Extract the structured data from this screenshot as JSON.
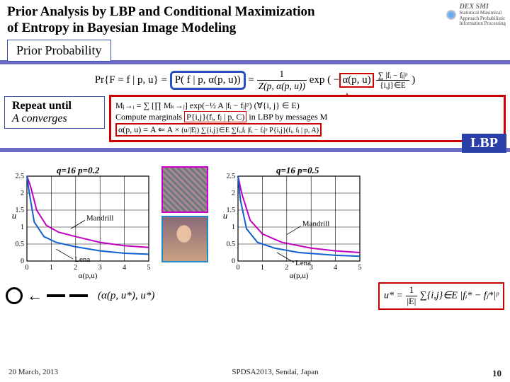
{
  "title": {
    "line1": "Prior Analysis by LBP and Conditional Maximization",
    "line2": "of Entropy in Bayesian Image Modeling"
  },
  "logo": {
    "short": "DEX SMI",
    "l1": "Statistical Maximizal",
    "l2": "Approach",
    "l3": "Probabilistic",
    "l4": "Information Processing"
  },
  "prior_box": "Prior Probability",
  "main_eq": {
    "lhs": "Pr{F = f | p, u} =",
    "blue": "P( f | p, α(p, u))",
    "mid": "=",
    "frac_n": "1",
    "frac_d": "Z(p, α(p, u))",
    "exp_pre": "exp",
    "alpha": "α(p, u)",
    "sum": "∑ |fᵢ − fⱼ|ᵖ",
    "sum_sub": "{i,j}∈E"
  },
  "repeat_box": {
    "l1": "Repeat until",
    "l2": "A converges"
  },
  "lbp_block": {
    "l1": "Mⱼ→ᵢ = ∑ [∏ Mₖ→ⱼ] exp(−½ A |fᵢ − fⱼ|ᵖ)  (∀{i, j} ∈ E)",
    "l2_pre": "Compute marginals ",
    "l2_box": "P{i,j}(fᵢ, fⱼ | p, C)",
    "l2_post": " in LBP by messages M",
    "l3_lhs": "α(p, u) = A ⇐ A ×",
    "l3_rhs": "(u/|E|) ∑{i,j}∈E ∑fᵢ,fⱼ |fᵢ − fⱼ|ᵖ P{i,j}(fᵢ, fⱼ | p, A)",
    "label": "LBP"
  },
  "chart_left": {
    "caption": "q=16  p=0.2",
    "ylabel": "u",
    "xlabel": "α(p,u)",
    "xlim": [
      0,
      5
    ],
    "ylim": [
      0,
      2.5
    ],
    "xticks": [
      0,
      1,
      2,
      3,
      4,
      5
    ],
    "yticks": [
      0,
      0.5,
      1,
      1.5,
      2,
      2.5
    ],
    "series": {
      "mandrill": {
        "color": "#c000c0",
        "points": [
          [
            0,
            2.5
          ],
          [
            0.15,
            2.2
          ],
          [
            0.4,
            1.5
          ],
          [
            0.8,
            1.05
          ],
          [
            1.3,
            0.85
          ],
          [
            2,
            0.72
          ],
          [
            3,
            0.55
          ],
          [
            4,
            0.45
          ],
          [
            5,
            0.4
          ]
        ]
      },
      "lena": {
        "color": "#1060d0",
        "points": [
          [
            0,
            2.5
          ],
          [
            0.1,
            2.0
          ],
          [
            0.3,
            1.15
          ],
          [
            0.7,
            0.72
          ],
          [
            1.2,
            0.55
          ],
          [
            2,
            0.42
          ],
          [
            3,
            0.3
          ],
          [
            4,
            0.23
          ],
          [
            5,
            0.2
          ]
        ]
      }
    },
    "labels": {
      "mandrill": "Mandrill",
      "lena": "Lena"
    },
    "mandrill_mark": [
      1.8,
      0.95
    ],
    "lena_mark": [
      1.2,
      0.35
    ],
    "grid_color": "#000",
    "gridw": 0.6,
    "bg": "#ffffff",
    "label_fontsize": 11,
    "tick_fontsize": 10
  },
  "chart_right": {
    "caption": "q=16  p=0.5",
    "ylabel": "u",
    "xlabel": "α(p,u)",
    "xlim": [
      0,
      5
    ],
    "ylim": [
      0,
      2.5
    ],
    "xticks": [
      0,
      1,
      2,
      3,
      4,
      5
    ],
    "yticks": [
      0,
      0.5,
      1,
      1.5,
      2,
      2.5
    ],
    "series": {
      "mandrill": {
        "color": "#c000c0",
        "points": [
          [
            0,
            2.5
          ],
          [
            0.15,
            2.0
          ],
          [
            0.5,
            1.2
          ],
          [
            1.0,
            0.8
          ],
          [
            1.8,
            0.55
          ],
          [
            3,
            0.38
          ],
          [
            4,
            0.3
          ],
          [
            5,
            0.25
          ]
        ]
      },
      "lena": {
        "color": "#1060d0",
        "points": [
          [
            0,
            2.5
          ],
          [
            0.1,
            1.8
          ],
          [
            0.35,
            0.95
          ],
          [
            0.8,
            0.55
          ],
          [
            1.5,
            0.38
          ],
          [
            2.5,
            0.25
          ],
          [
            4,
            0.17
          ],
          [
            5,
            0.14
          ]
        ]
      }
    },
    "labels": {
      "mandrill": "Mandrill",
      "lena": "Lena"
    },
    "mandrill_mark": [
      2.0,
      0.78
    ],
    "lena_mark": [
      1.6,
      0.25
    ],
    "grid_color": "#000",
    "gridw": 0.6,
    "bg": "#ffffff",
    "label_fontsize": 11,
    "tick_fontsize": 10
  },
  "bottom_eq": "(α(p, u*), u*)",
  "ustar_eq": {
    "lhs": "u* = ",
    "frac_n": "1",
    "frac_d": "|E|",
    "rhs": " ∑{i,j}∈E |fᵢ* − fⱼ*|ᵖ"
  },
  "footer": {
    "date": "20 March, 2013",
    "venue": "SPDSA2013, Sendai, Japan",
    "page": "10"
  }
}
